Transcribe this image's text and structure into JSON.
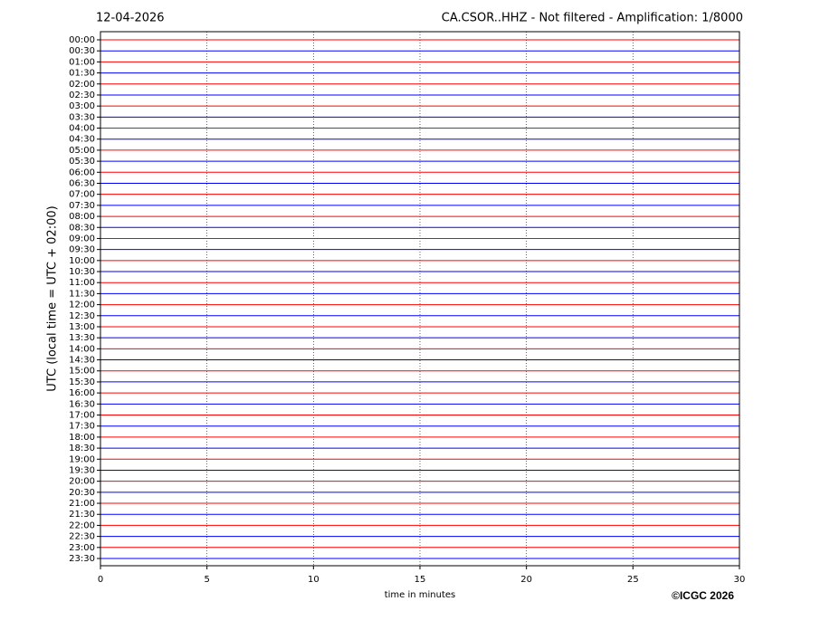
{
  "chart_data": {
    "type": "helicorder",
    "title_left": "12-04-2026",
    "title": "CA.CSOR..HHZ - Not filtered - Amplification: 1/8000",
    "xlabel": "time in minutes",
    "ylabel": "UTC (local time = UTC + 02:00)",
    "credit": "©ICGC 2026",
    "categories": [
      "00:00",
      "00:30",
      "01:00",
      "01:30",
      "02:00",
      "02:30",
      "03:00",
      "03:30",
      "04:00",
      "04:30",
      "05:00",
      "05:30",
      "06:00",
      "06:30",
      "07:00",
      "07:30",
      "08:00",
      "08:30",
      "09:00",
      "09:30",
      "10:00",
      "10:30",
      "11:00",
      "11:30",
      "12:00",
      "12:30",
      "13:00",
      "13:30",
      "14:00",
      "14:30",
      "15:00",
      "15:30",
      "16:00",
      "16:30",
      "17:00",
      "17:30",
      "18:00",
      "18:30",
      "19:00",
      "19:30",
      "20:00",
      "20:30",
      "21:00",
      "21:30",
      "22:00",
      "22:30",
      "23:00",
      "23:30"
    ],
    "colors": [
      "#ff0000",
      "#0000ff"
    ],
    "xlim": [
      0,
      30
    ],
    "xticks": [
      0,
      5,
      10,
      15,
      20,
      25,
      30
    ],
    "grid": true
  }
}
